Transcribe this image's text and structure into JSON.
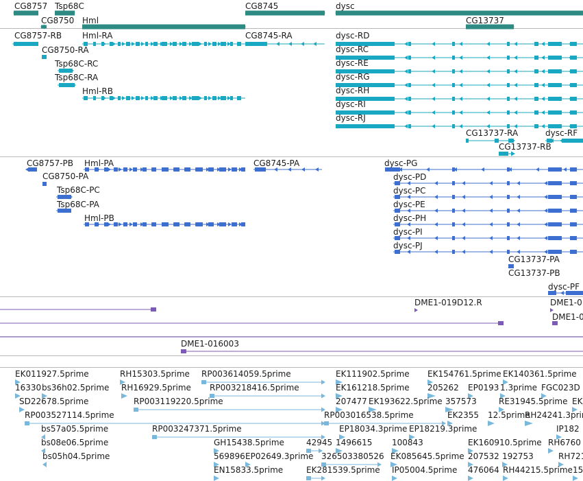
{
  "tracks": {
    "genes": {
      "color": "#2e8b84",
      "features": [
        {
          "label": "CG8757"
        },
        {
          "label": "Tsp68C"
        },
        {
          "label": "CG8750"
        },
        {
          "label": "Hml"
        },
        {
          "label": "CG8745"
        },
        {
          "label": "dysc"
        },
        {
          "label": "CG13737"
        }
      ]
    },
    "transcripts": {
      "color": "#1aa7c1",
      "features": [
        {
          "label": "CG8757-RB"
        },
        {
          "label": "Hml-RA"
        },
        {
          "label": "CG8745-RA"
        },
        {
          "label": "CG8750-RA"
        },
        {
          "label": "Tsp68C-RC"
        },
        {
          "label": "Tsp68C-RA"
        },
        {
          "label": "Hml-RB"
        },
        {
          "label": "dysc-RD"
        },
        {
          "label": "dysc-RC"
        },
        {
          "label": "dysc-RE"
        },
        {
          "label": "dysc-RG"
        },
        {
          "label": "dysc-RH"
        },
        {
          "label": "dysc-RI"
        },
        {
          "label": "dysc-RJ"
        },
        {
          "label": "CG13737-RA"
        },
        {
          "label": "dysc-RF"
        },
        {
          "label": "CG13737-RB"
        }
      ]
    },
    "proteins": {
      "color": "#3c6fcf",
      "features": [
        {
          "label": "CG8757-PB"
        },
        {
          "label": "Hml-PA"
        },
        {
          "label": "CG8745-PA"
        },
        {
          "label": "CG8750-PA"
        },
        {
          "label": "Tsp68C-PC"
        },
        {
          "label": "Tsp68C-PA"
        },
        {
          "label": "Hml-PB"
        },
        {
          "label": "dysc-PG"
        },
        {
          "label": "dysc-PD"
        },
        {
          "label": "dysc-PC"
        },
        {
          "label": "dysc-PE"
        },
        {
          "label": "dysc-PH"
        },
        {
          "label": "dysc-PI"
        },
        {
          "label": "dysc-PJ"
        },
        {
          "label": "CG13737-PA"
        },
        {
          "label": "CG13737-PB"
        },
        {
          "label": "dysc-PF"
        }
      ]
    },
    "bac_clones": {
      "color": "#7b5bb5",
      "features": [
        {
          "label": "DME1-019D12.R"
        },
        {
          "label": "DME1-0"
        },
        {
          "label": "DME1-0"
        },
        {
          "label": "DME1-016003"
        }
      ]
    },
    "est": {
      "color": "#7ab8db",
      "features": [
        {
          "label": "EK011927.5prime"
        },
        {
          "label": "RH15303.5prime"
        },
        {
          "label": "RP003614059.5prime"
        },
        {
          "label": "EK111902.5prime"
        },
        {
          "label": "EK154761.5prime"
        },
        {
          "label": "EK140361.5prime"
        },
        {
          "label": "16330"
        },
        {
          "label": "bs36h02.5prime"
        },
        {
          "label": "RH16929.5prime"
        },
        {
          "label": "RP003218416.5prime"
        },
        {
          "label": "EK161218.5prime"
        },
        {
          "label": "205262"
        },
        {
          "label": "EP0193"
        },
        {
          "label": "1.3prime"
        },
        {
          "label": "FGC023D"
        },
        {
          "label": "SD22678.5prime"
        },
        {
          "label": "RP003119220.5prime"
        },
        {
          "label": "207477"
        },
        {
          "label": "EK193622.5prime"
        },
        {
          "label": "357573"
        },
        {
          "label": "RE31945.5prime"
        },
        {
          "label": "EK"
        },
        {
          "label": "RP003527114.5prime"
        },
        {
          "label": "RP003016538.5prime"
        },
        {
          "label": "EK2355"
        },
        {
          "label": "12.5prime"
        },
        {
          "label": "RH24241.3prime"
        },
        {
          "label": "bs57a05.5prime"
        },
        {
          "label": "RP003247371.5prime"
        },
        {
          "label": "EP18034.3prime"
        },
        {
          "label": "EP18219.3prime"
        },
        {
          "label": "IP182"
        },
        {
          "label": "bs08e06.5prime"
        },
        {
          "label": "GH15438.5prime"
        },
        {
          "label": "42945"
        },
        {
          "label": "1496615"
        },
        {
          "label": "100843"
        },
        {
          "label": "EK160910.5prime"
        },
        {
          "label": "RH6760"
        },
        {
          "label": "bs05h04.5prime"
        },
        {
          "label": "569896"
        },
        {
          "label": "EP02649.3prime"
        },
        {
          "label": "326503380526"
        },
        {
          "label": "EK085645.5prime"
        },
        {
          "label": "207532"
        },
        {
          "label": "192753"
        },
        {
          "label": "RH7216"
        },
        {
          "label": "EN15833.5prime"
        },
        {
          "label": "EK281539.5prime"
        },
        {
          "label": "IP05004.5prime"
        },
        {
          "label": "476064"
        },
        {
          "label": "RH44215.5prime"
        },
        {
          "label": "15"
        }
      ]
    }
  }
}
